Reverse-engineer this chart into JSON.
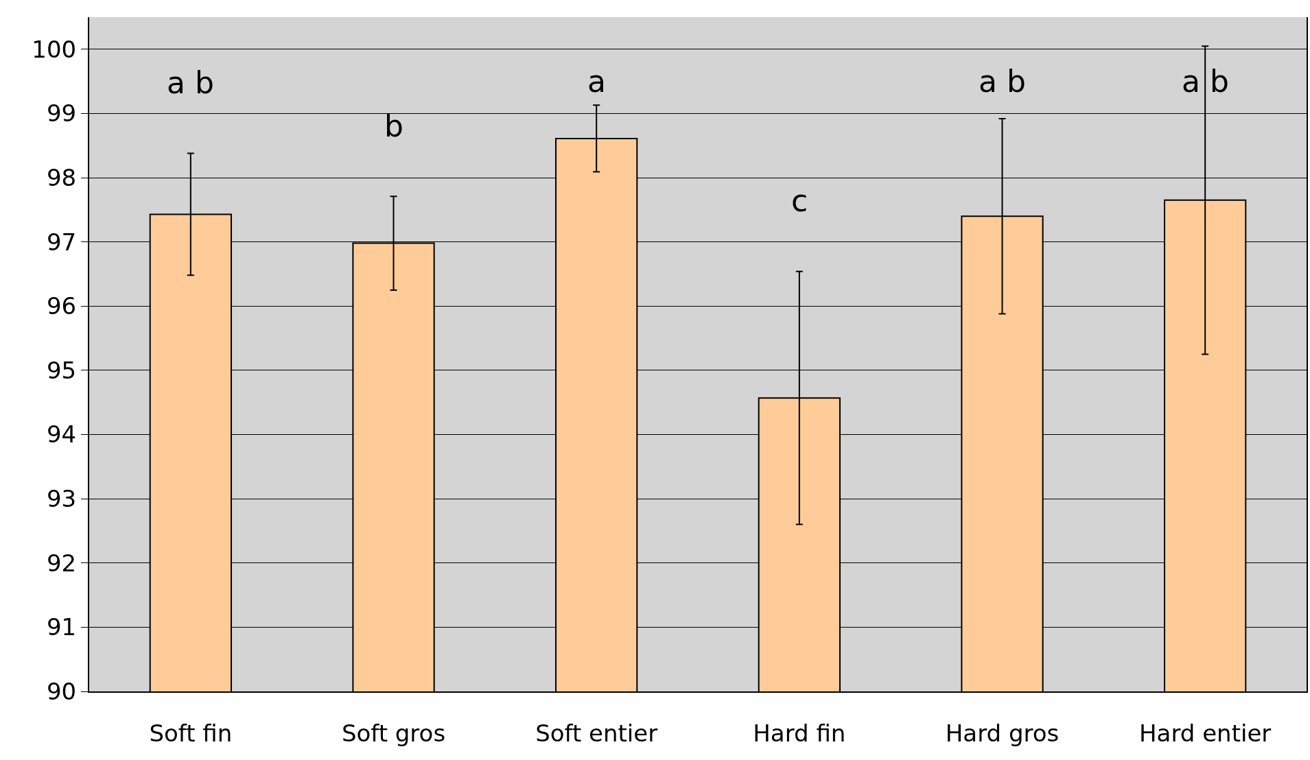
{
  "chart_data": {
    "type": "bar",
    "categories": [
      "Soft fin",
      "Soft gros",
      "Soft entier",
      "Hard fin",
      "Hard gros",
      "Hard entier"
    ],
    "values": [
      97.43,
      96.98,
      98.61,
      94.57,
      97.4,
      97.65
    ],
    "errors": [
      0.95,
      0.73,
      0.52,
      1.97,
      1.52,
      2.4
    ],
    "color": "#ffcc99",
    "ylim": [
      90,
      100.5
    ],
    "yticks": [
      90,
      91,
      92,
      93,
      94,
      95,
      96,
      97,
      98,
      99,
      100
    ],
    "grid": "y",
    "annotations": [
      "a b",
      "b",
      "a",
      "c",
      "a b",
      "a b"
    ]
  }
}
